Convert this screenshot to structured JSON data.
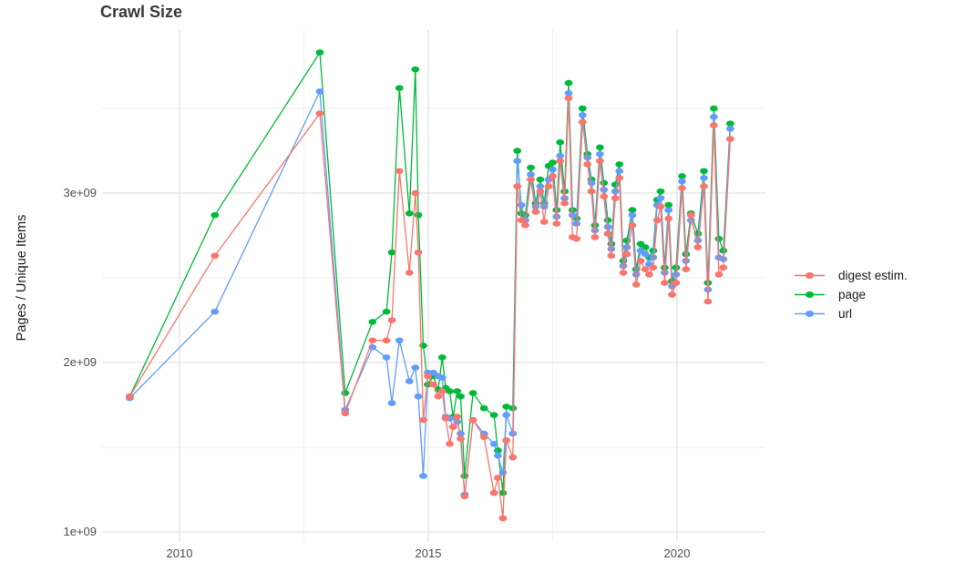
{
  "page": {
    "title": "Crawl Size"
  },
  "chart_data": {
    "type": "line",
    "title": "Crawl Size",
    "xlabel": "",
    "ylabel": "Pages / Unique Items",
    "x_axis": {
      "tick_labels": [
        "2010",
        "2015",
        "2020"
      ],
      "tick_values": [
        2010,
        2015,
        2020
      ],
      "minor_tick_values": [
        2012.5,
        2017.5
      ],
      "range": [
        2008.4,
        2021.9
      ]
    },
    "y_axis": {
      "tick_labels": [
        "1e+09",
        "2e+09",
        "3e+09"
      ],
      "tick_values_billions": [
        1,
        2,
        3
      ],
      "minor_tick_values_billions": [
        1.5,
        2.5,
        3.5
      ],
      "range_billions": [
        0.94,
        3.97
      ]
    },
    "grid": {
      "show": true,
      "major_color": "#e3e3e3",
      "minor_color": "#efefef",
      "background": "#ffffff"
    },
    "legend": {
      "position": "right",
      "entries": [
        "digest estim.",
        "page",
        "url"
      ]
    },
    "x_years": [
      2009.0,
      2010.71,
      2012.82,
      2013.33,
      2013.88,
      2014.16,
      2014.27,
      2014.42,
      2014.62,
      2014.74,
      2014.8,
      2014.9,
      2014.99,
      2015.1,
      2015.2,
      2015.28,
      2015.35,
      2015.43,
      2015.5,
      2015.58,
      2015.65,
      2015.73,
      2015.9,
      2016.12,
      2016.32,
      2016.4,
      2016.5,
      2016.57,
      2016.7,
      2016.79,
      2016.87,
      2016.95,
      2017.06,
      2017.16,
      2017.25,
      2017.33,
      2017.42,
      2017.5,
      2017.58,
      2017.65,
      2017.74,
      2017.82,
      2017.9,
      2017.98,
      2018.1,
      2018.2,
      2018.28,
      2018.35,
      2018.45,
      2018.53,
      2018.61,
      2018.68,
      2018.76,
      2018.84,
      2018.92,
      2018.99,
      2019.1,
      2019.18,
      2019.27,
      2019.36,
      2019.44,
      2019.52,
      2019.6,
      2019.67,
      2019.75,
      2019.83,
      2019.9,
      2019.98,
      2020.1,
      2020.18,
      2020.28,
      2020.42,
      2020.54,
      2020.62,
      2020.74,
      2020.84,
      2020.93,
      2021.07
    ],
    "series": [
      {
        "name": "digest estim.",
        "color": "#F8766D",
        "values_billions": [
          1.8,
          2.63,
          3.47,
          1.7,
          2.13,
          2.13,
          2.25,
          3.13,
          2.53,
          3.0,
          2.65,
          1.66,
          1.92,
          1.87,
          1.8,
          1.83,
          1.67,
          1.52,
          1.62,
          1.68,
          1.55,
          1.21,
          1.66,
          1.56,
          1.23,
          1.32,
          1.08,
          1.54,
          1.44,
          3.04,
          2.84,
          2.81,
          3.08,
          2.89,
          3.01,
          2.83,
          3.04,
          3.1,
          2.82,
          3.19,
          2.94,
          3.56,
          2.74,
          2.73,
          3.42,
          3.17,
          3.01,
          2.74,
          3.19,
          2.98,
          2.76,
          2.63,
          2.97,
          3.09,
          2.53,
          2.64,
          2.81,
          2.46,
          2.6,
          2.55,
          2.52,
          2.56,
          2.84,
          2.92,
          2.47,
          2.85,
          2.4,
          2.47,
          3.03,
          2.55,
          2.87,
          2.68,
          3.04,
          2.36,
          3.4,
          2.52,
          2.56,
          3.32
        ]
      },
      {
        "name": "page",
        "color": "#00BA38",
        "values_billions": [
          1.8,
          2.87,
          3.83,
          1.82,
          2.24,
          2.3,
          2.65,
          3.62,
          2.88,
          3.73,
          2.87,
          2.1,
          1.87,
          1.92,
          1.84,
          2.03,
          1.85,
          1.83,
          1.68,
          1.83,
          1.8,
          1.33,
          1.82,
          1.73,
          1.69,
          1.48,
          1.23,
          1.74,
          1.73,
          3.25,
          2.88,
          2.87,
          3.15,
          2.94,
          3.08,
          2.94,
          3.16,
          3.18,
          2.9,
          3.3,
          3.01,
          3.65,
          2.9,
          2.85,
          3.5,
          3.23,
          3.08,
          2.81,
          3.27,
          3.06,
          2.84,
          2.7,
          3.05,
          3.17,
          2.6,
          2.72,
          2.9,
          2.55,
          2.7,
          2.68,
          2.62,
          2.66,
          2.96,
          3.01,
          2.56,
          2.93,
          2.48,
          2.56,
          3.1,
          2.64,
          2.88,
          2.76,
          3.13,
          2.47,
          3.5,
          2.73,
          2.66,
          3.41
        ]
      },
      {
        "name": "url",
        "color": "#619CFF",
        "values_billions": [
          1.79,
          2.3,
          3.6,
          1.72,
          2.09,
          2.03,
          1.76,
          2.13,
          1.89,
          1.97,
          1.8,
          1.33,
          1.94,
          1.94,
          1.92,
          1.91,
          1.68,
          1.67,
          1.62,
          1.65,
          1.58,
          1.22,
          1.66,
          1.58,
          1.52,
          1.45,
          1.35,
          1.69,
          1.58,
          3.19,
          2.93,
          2.84,
          3.11,
          2.92,
          3.04,
          2.92,
          3.08,
          3.14,
          2.86,
          3.22,
          2.97,
          3.59,
          2.87,
          2.82,
          3.46,
          3.21,
          3.06,
          2.78,
          3.23,
          3.02,
          2.8,
          2.67,
          3.01,
          3.13,
          2.57,
          2.68,
          2.87,
          2.52,
          2.66,
          2.64,
          2.58,
          2.62,
          2.93,
          2.97,
          2.53,
          2.9,
          2.45,
          2.52,
          3.07,
          2.6,
          2.84,
          2.72,
          3.09,
          2.43,
          3.45,
          2.62,
          2.61,
          3.38
        ]
      }
    ]
  }
}
